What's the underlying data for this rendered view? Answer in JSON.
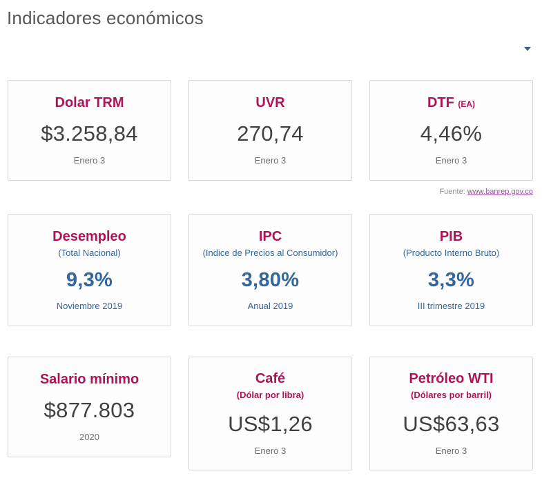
{
  "page": {
    "title": "Indicadores económicos"
  },
  "dropdown": {
    "caret_icon": "caret-down"
  },
  "source": {
    "label": "Fuente:",
    "link": "www.banrep.gov.co"
  },
  "colors": {
    "accent_crimson": "#ad1457",
    "accent_blue": "#33669c",
    "value_gray": "#414042",
    "date_gray": "#6d6e71",
    "page_title_gray": "#57585a",
    "link_purple": "#9b51a0",
    "card_border": "#d8d8d8",
    "card_background": "#fdfdfd",
    "caret_blue": "#3d6186"
  },
  "cards": [
    {
      "title": "Dolar TRM",
      "value": "$3.258,84",
      "date": "Enero 3"
    },
    {
      "title": "UVR",
      "value": "270,74",
      "date": "Enero 3"
    },
    {
      "title": "DTF",
      "title_suffix": "(EA)",
      "value": "4,46%",
      "date": "Enero 3"
    },
    {
      "title": "Desempleo",
      "subtitle": "(Total Nacional)",
      "value": "9,3%",
      "date": "Noviembre 2019"
    },
    {
      "title": "IPC",
      "subtitle": "(Indice de Precios al Consumidor)",
      "value": "3,80%",
      "date": "Anual 2019"
    },
    {
      "title": "PIB",
      "subtitle": "(Producto Interno Bruto)",
      "value": "3,3%",
      "date": "III trimestre 2019"
    },
    {
      "title": "Salario mínimo",
      "value": "$877.803",
      "date": "2020"
    },
    {
      "title": "Café",
      "subtitle": "(Dólar por libra)",
      "value": "US$1,26",
      "date": "Enero 3"
    },
    {
      "title": "Petróleo WTI",
      "subtitle": "(Dólares por barril)",
      "value": "US$63,63",
      "date": "Enero 3"
    }
  ]
}
